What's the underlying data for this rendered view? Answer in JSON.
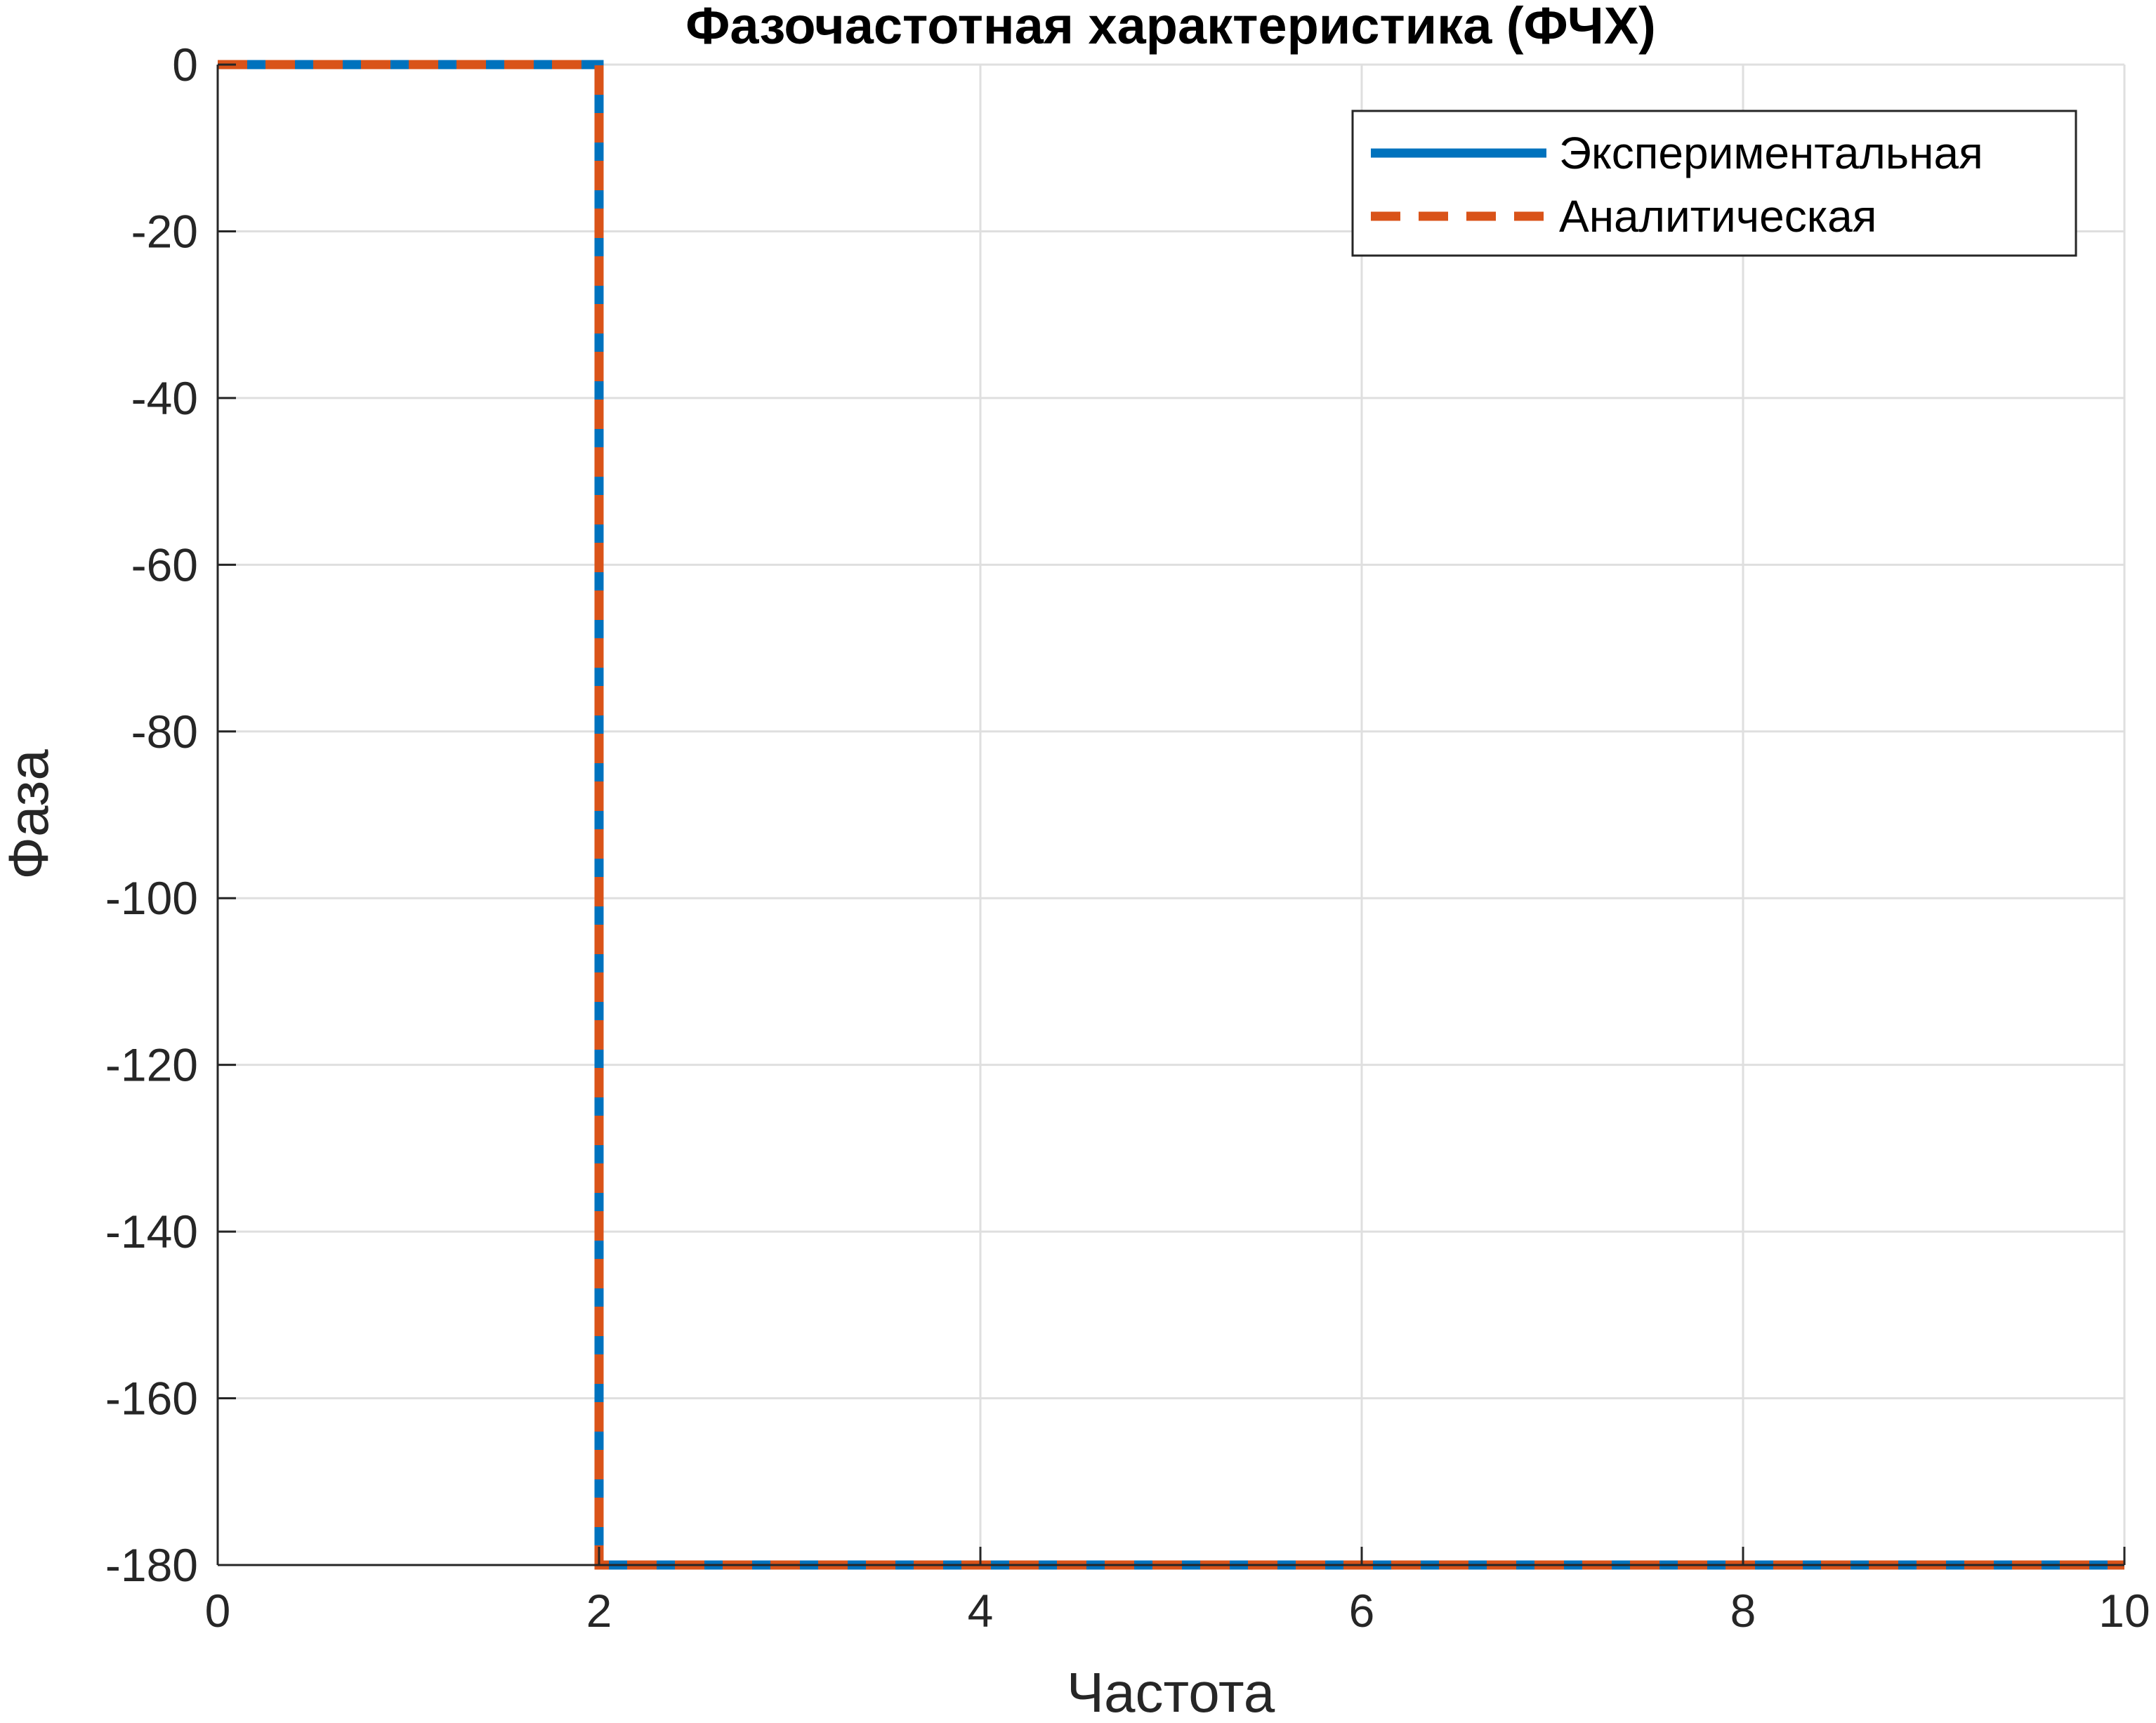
{
  "chart_data": {
    "type": "line",
    "title": "Фазочастотная характеристика (ФЧХ)",
    "xlabel": "Частота",
    "ylabel": "Фаза",
    "xlim": [
      0,
      10
    ],
    "ylim": [
      -180,
      0
    ],
    "xticks": [
      0,
      2,
      4,
      6,
      8,
      10
    ],
    "xtick_labels": [
      "0",
      "2",
      "4",
      "6",
      "8",
      "10"
    ],
    "yticks": [
      0,
      -20,
      -40,
      -60,
      -80,
      -100,
      -120,
      -140,
      -160,
      -180
    ],
    "ytick_labels": [
      "0",
      "-20",
      "-40",
      "-60",
      "-80",
      "-100",
      "-120",
      "-140",
      "-160",
      "-180"
    ],
    "grid": true,
    "legend_position": "top-right",
    "series": [
      {
        "name": "Экспериментальная",
        "color": "#0072BD",
        "style": "solid",
        "x": [
          0,
          2,
          2,
          10
        ],
        "y": [
          0,
          0,
          -180,
          -180
        ]
      },
      {
        "name": "Аналитическая",
        "color": "#D95319",
        "style": "dashed",
        "x": [
          0,
          2,
          2,
          10
        ],
        "y": [
          0,
          0,
          -180,
          -180
        ]
      }
    ]
  }
}
